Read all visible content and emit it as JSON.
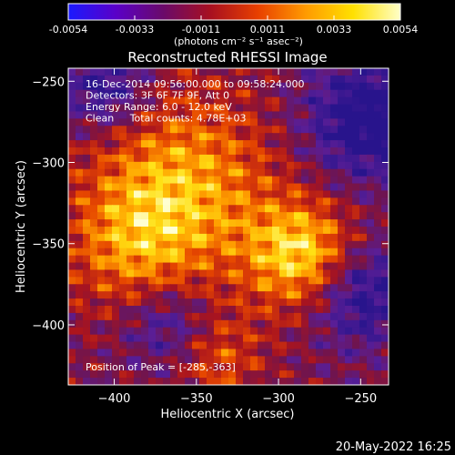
{
  "colorbar": {
    "ticks": [
      "-0.0054",
      "-0.0033",
      "-0.0011",
      "0.0011",
      "0.0033",
      "0.0054"
    ],
    "units_label": "(photons cm⁻² s⁻¹ asec⁻²)",
    "colors": [
      "#1a1aff",
      "#5a00c8",
      "#6a0a6a",
      "#a81020",
      "#e84000",
      "#ff9a00",
      "#ffe000",
      "#ffffc8"
    ]
  },
  "chart_data": {
    "type": "heatmap",
    "title": "Reconstructed RHESSI Image",
    "xlabel": "Heliocentric X (arcsec)",
    "ylabel": "Heliocentric Y (arcsec)",
    "xlim": [
      -428,
      -233
    ],
    "ylim": [
      -437,
      -242
    ],
    "x_ticks": [
      -400,
      -350,
      -300,
      -250
    ],
    "y_ticks": [
      -250,
      -300,
      -350,
      -400
    ],
    "colorbar_range": [
      -0.0054,
      0.0054
    ],
    "annotations": [
      "16-Dec-2014 09:56:00.000 to 09:58:24.000",
      "Detectors: 3F 6F 7F 9F, Att 0",
      "Energy Range: 6.0 - 12.0 keV",
      "Clean     Total counts: 4.78E+03"
    ],
    "peak_label": "Position of Peak = [-285,-363]",
    "peak": [
      -285,
      -363
    ]
  },
  "footer": {
    "date": "20-May-2022 16:25"
  }
}
